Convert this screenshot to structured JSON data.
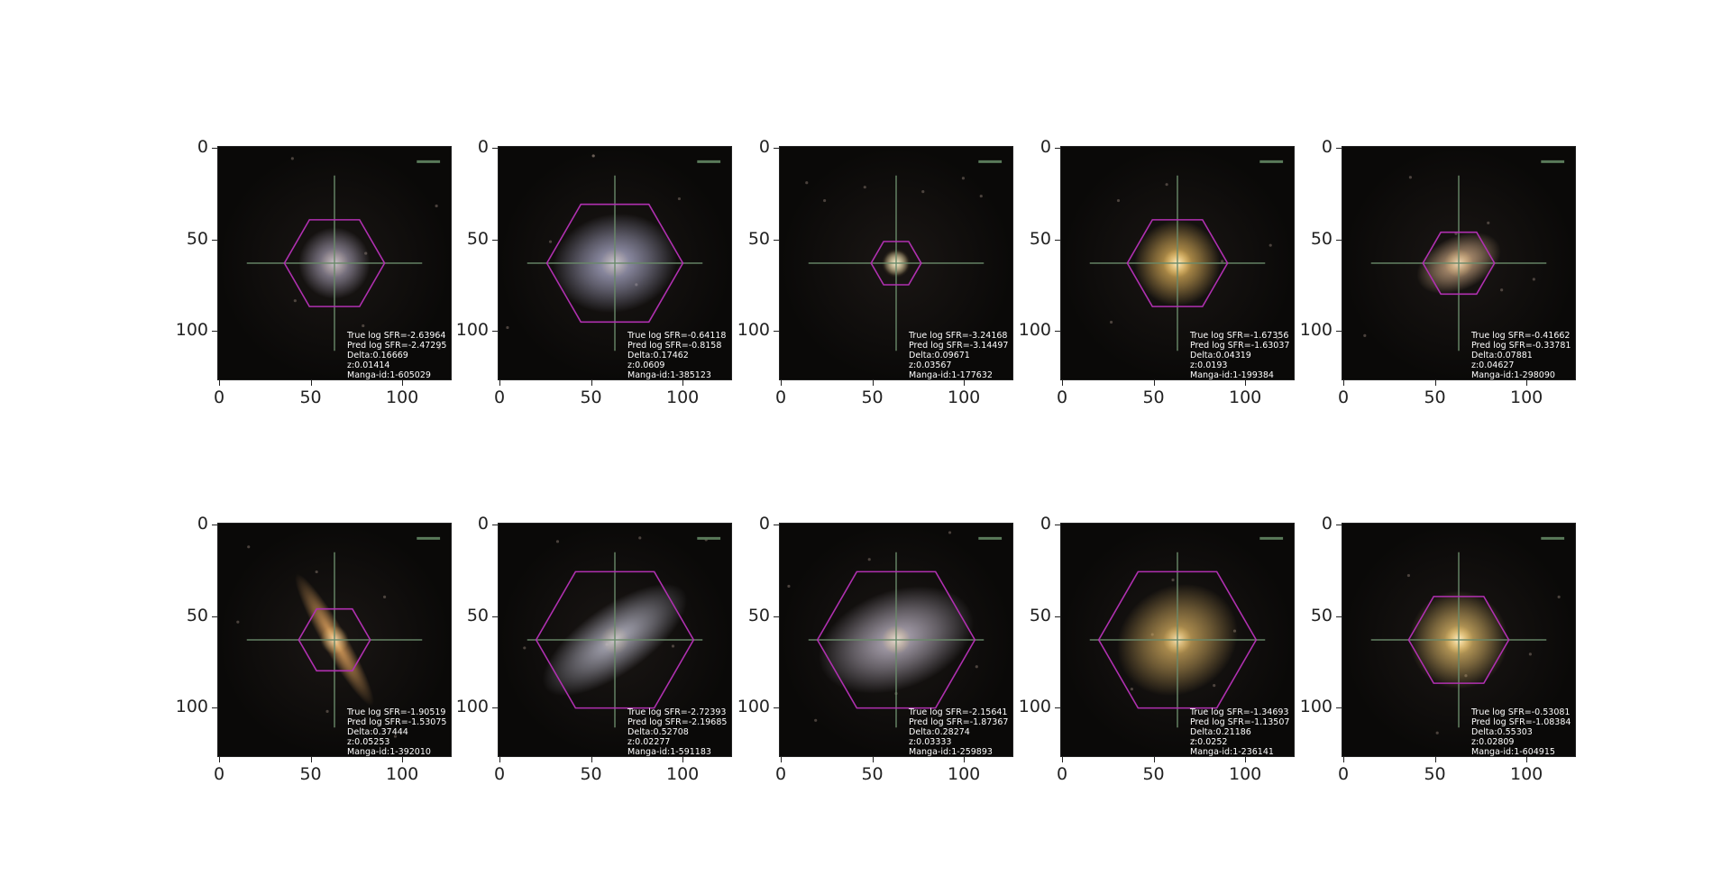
{
  "axes": {
    "x_ticks": [
      "0",
      "50",
      "100"
    ],
    "y_ticks": [
      "0",
      "50",
      "100"
    ]
  },
  "panels": [
    {
      "true_sfr": "True log SFR=-2.63964",
      "pred_sfr": "Pred log SFR=-2.47295",
      "delta": "Delta:0.16669",
      "z": "z:0.01414",
      "manga_id": "Manga-id:1-605029",
      "galaxy_color": "#b8b0c8",
      "hex_size": 0.7,
      "bulge": 0.3
    },
    {
      "true_sfr": "True log SFR=-0.64118",
      "pred_sfr": "Pred log SFR=-0.8158",
      "delta": "Delta:0.17462",
      "z": "z:0.0609",
      "manga_id": "Manga-id:1-385123",
      "galaxy_color": "#b0b0d0",
      "hex_size": 0.95,
      "bulge": 0.35
    },
    {
      "true_sfr": "True log SFR=-3.24168",
      "pred_sfr": "Pred log SFR=-3.14497",
      "delta": "Delta:0.09671",
      "z": "z:0.03567",
      "manga_id": "Manga-id:1-177632",
      "galaxy_color": "#f0e8c0",
      "hex_size": 0.35,
      "bulge": 0.6
    },
    {
      "true_sfr": "True log SFR=-1.67356",
      "pred_sfr": "Pred log SFR=-1.63037",
      "delta": "Delta:0.04319",
      "z": "z:0.0193",
      "manga_id": "Manga-id:1-199384",
      "galaxy_color": "#f0c060",
      "hex_size": 0.7,
      "bulge": 0.8
    },
    {
      "true_sfr": "True log SFR=-0.41662",
      "pred_sfr": "Pred log SFR=-0.33781",
      "delta": "Delta:0.07881",
      "z": "z:0.04627",
      "manga_id": "Manga-id:1-298090",
      "galaxy_color": "#e0b890",
      "hex_size": 0.5,
      "bulge": 0.5
    },
    {
      "true_sfr": "True log SFR=-1.90519",
      "pred_sfr": "Pred log SFR=-1.53075",
      "delta": "Delta:0.37444",
      "z": "z:0.05253",
      "manga_id": "Manga-id:1-392010",
      "galaxy_color": "#e8a860",
      "hex_size": 0.5,
      "bulge": 0.6
    },
    {
      "true_sfr": "True log SFR=-2.72393",
      "pred_sfr": "Pred log SFR=-2.19685",
      "delta": "Delta:0.52708",
      "z": "z:0.02277",
      "manga_id": "Manga-id:1-591183",
      "galaxy_color": "#b8b8c8",
      "hex_size": 1.1,
      "bulge": 0.3
    },
    {
      "true_sfr": "True log SFR=-2.15641",
      "pred_sfr": "Pred log SFR=-1.87367",
      "delta": "Delta:0.28274",
      "z": "z:0.03333",
      "manga_id": "Manga-id:1-259893",
      "galaxy_color": "#c0b8c8",
      "hex_size": 1.1,
      "bulge": 0.6
    },
    {
      "true_sfr": "True log SFR=-1.34693",
      "pred_sfr": "Pred log SFR=-1.13507",
      "delta": "Delta:0.21186",
      "z": "z:0.0252",
      "manga_id": "Manga-id:1-236141",
      "galaxy_color": "#d8b060",
      "hex_size": 1.1,
      "bulge": 0.7
    },
    {
      "true_sfr": "True log SFR=-0.53081",
      "pred_sfr": "Pred log SFR=-1.08384",
      "delta": "Delta:0.55303",
      "z": "z:0.02809",
      "manga_id": "Manga-id:1-604915",
      "galaxy_color": "#f0c870",
      "hex_size": 0.7,
      "bulge": 0.8
    }
  ]
}
